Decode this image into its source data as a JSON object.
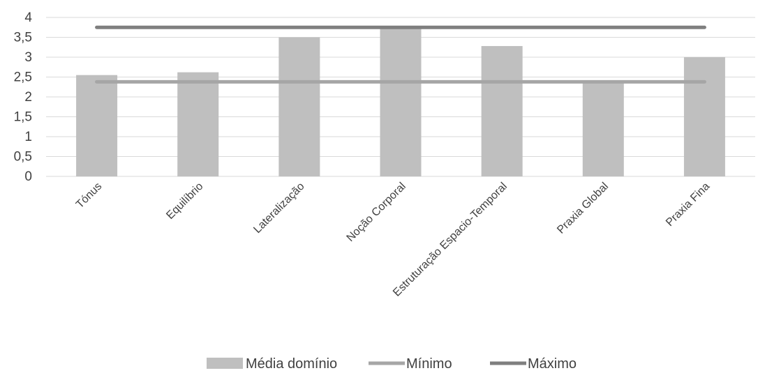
{
  "chart_data": {
    "type": "bar",
    "categories": [
      "Tónus",
      "Equilíbrio",
      "Lateralização",
      "Noção Corporal",
      "Estruturação Espacio-Temporal",
      "Praxia Global",
      "Praxia Fina"
    ],
    "series": [
      {
        "name": "Média domínio",
        "type": "bar",
        "values": [
          2.55,
          2.62,
          3.5,
          3.75,
          3.28,
          2.4,
          3.0
        ],
        "color": "#bfbfbf"
      },
      {
        "name": "Mínimo",
        "type": "line",
        "values": [
          2.38,
          2.38,
          2.38,
          2.38,
          2.38,
          2.38,
          2.38
        ],
        "color": "#a6a6a6"
      },
      {
        "name": "Máximo",
        "type": "line",
        "values": [
          3.75,
          3.75,
          3.75,
          3.75,
          3.75,
          3.75,
          3.75
        ],
        "color": "#7f7f7f"
      }
    ],
    "yticks": [
      "0",
      "0,5",
      "1",
      "1,5",
      "2",
      "2,5",
      "3",
      "3,5",
      "4"
    ],
    "ylim": [
      0,
      4
    ],
    "grid": true,
    "legend_position": "bottom"
  }
}
